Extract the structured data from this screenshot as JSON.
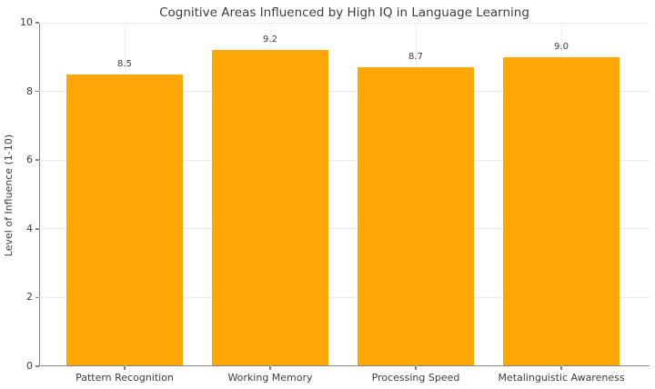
{
  "chart_data": {
    "type": "bar",
    "title": "Cognitive Areas Influenced by High IQ in Language Learning",
    "categories": [
      "Pattern Recognition",
      "Working Memory",
      "Processing Speed",
      "Metalinguistic Awareness"
    ],
    "values": [
      8.5,
      9.2,
      8.7,
      9.0
    ],
    "value_labels": [
      "8.5",
      "9.2",
      "8.7",
      "9.0"
    ],
    "xlabel": "",
    "ylabel": "Level of Influence (1-10)",
    "ylim": [
      0,
      10
    ],
    "yticks": [
      0,
      2,
      4,
      6,
      8,
      10
    ],
    "grid": "on",
    "legend": "none",
    "colors": {
      "bar": "#ffa608",
      "spine": "#848484",
      "grid_horizontal": "#e9e9e9",
      "grid_vertical": "#ececec",
      "text": "#3c3c3c",
      "background": "#ffffff"
    }
  }
}
